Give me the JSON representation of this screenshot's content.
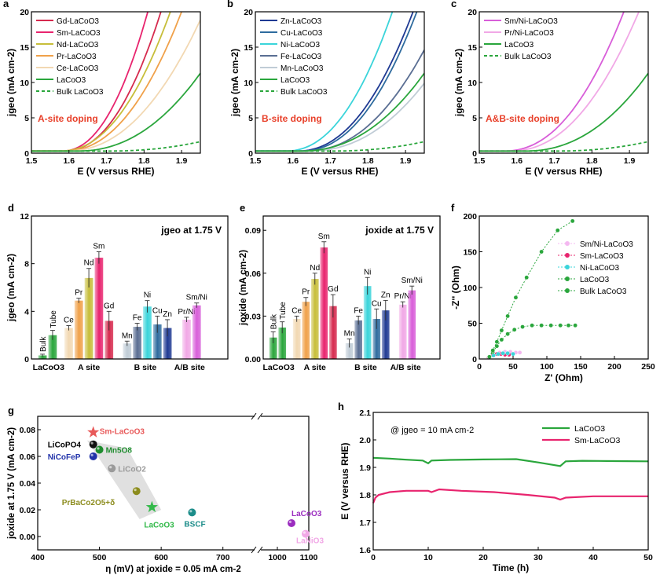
{
  "colors": {
    "Gd": "#d62a4e",
    "Sm": "#e8246e",
    "Nd": "#c7be3a",
    "Pr": "#f0a14a",
    "Ce": "#f2d8b2",
    "LaCoO3": "#2aa63c",
    "Bulk": "#2aa63c",
    "Zn": "#1f3a93",
    "Cu": "#2e6b9e",
    "Ni": "#3ad4da",
    "Fe": "#5a6e93",
    "Mn": "#c0ccd6",
    "SmNi": "#d85ed9",
    "PrNi": "#f1a8e6"
  },
  "panels": [
    {
      "id": "a",
      "letter": "a",
      "type": "line",
      "xlabel": "E (V versus RHE)",
      "ylabel": "jgeo (mA cm-2)",
      "xlim": [
        1.5,
        1.95
      ],
      "ylim": [
        0,
        20
      ],
      "xticks": [
        "1.5",
        "1.6",
        "1.7",
        "1.8",
        "1.9"
      ],
      "yticks": [
        "0",
        "5",
        "10",
        "15",
        "20"
      ],
      "annotation": "A-site doping",
      "series": [
        {
          "name": "Gd-LaCoO3",
          "key": "Gd",
          "onset": 1.585,
          "end": 1.845,
          "dash": false
        },
        {
          "name": "Sm-LaCoO3",
          "key": "Sm",
          "onset": 1.58,
          "end": 1.81,
          "dash": false
        },
        {
          "name": "Nd-LaCoO3",
          "key": "Nd",
          "onset": 1.575,
          "end": 1.87,
          "dash": false
        },
        {
          "name": "Pr-LaCoO3",
          "key": "Pr",
          "onset": 1.585,
          "end": 1.9,
          "dash": false
        },
        {
          "name": "Ce-LaCoO3",
          "key": "Ce",
          "onset": 1.59,
          "end": 1.96,
          "dash": false
        },
        {
          "name": "LaCoO3",
          "key": "LaCoO3",
          "onset": 1.62,
          "end": 2.05,
          "dash": false
        },
        {
          "name": "Bulk LaCoO3",
          "key": "Bulk",
          "onset": 1.7,
          "end": 2.55,
          "dash": true
        }
      ]
    },
    {
      "id": "b",
      "letter": "b",
      "type": "line",
      "xlabel": "E (V versus RHE)",
      "ylabel": "jgeo (mA cm-2)",
      "xlim": [
        1.5,
        1.95
      ],
      "ylim": [
        0,
        20
      ],
      "xticks": [
        "1.5",
        "1.6",
        "1.7",
        "1.8",
        "1.9"
      ],
      "yticks": [
        "0",
        "5",
        "10",
        "15",
        "20"
      ],
      "annotation": "B-site doping",
      "series": [
        {
          "name": "Zn-LaCoO3",
          "key": "Zn",
          "onset": 1.61,
          "end": 1.92,
          "dash": false
        },
        {
          "name": "Cu-LaCoO3",
          "key": "Cu",
          "onset": 1.62,
          "end": 1.93,
          "dash": false
        },
        {
          "name": "Ni-LaCoO3",
          "key": "Ni",
          "onset": 1.58,
          "end": 1.865,
          "dash": false
        },
        {
          "name": "Fe-LaCoO3",
          "key": "Fe",
          "onset": 1.63,
          "end": 2.0,
          "dash": false
        },
        {
          "name": "Mn-LaCoO3",
          "key": "Mn",
          "onset": 1.64,
          "end": 2.07,
          "dash": false
        },
        {
          "name": "LaCoO3",
          "key": "LaCoO3",
          "onset": 1.62,
          "end": 2.05,
          "dash": false
        },
        {
          "name": "Bulk LaCoO3",
          "key": "Bulk",
          "onset": 1.7,
          "end": 2.55,
          "dash": true
        }
      ]
    },
    {
      "id": "c",
      "letter": "c",
      "type": "line",
      "xlabel": "E (V versus RHE)",
      "ylabel": "jgeo (mA cm-2)",
      "xlim": [
        1.5,
        1.95
      ],
      "ylim": [
        0,
        20
      ],
      "xticks": [
        "1.5",
        "1.6",
        "1.7",
        "1.8",
        "1.9"
      ],
      "yticks": [
        "0",
        "5",
        "10",
        "15",
        "20"
      ],
      "annotation": "A&B-site doping",
      "series": [
        {
          "name": "Sm/Ni-LaCoO3",
          "key": "SmNi",
          "onset": 1.565,
          "end": 1.885,
          "dash": false
        },
        {
          "name": "Pr/Ni-LaCoO3",
          "key": "PrNi",
          "onset": 1.58,
          "end": 1.925,
          "dash": false
        },
        {
          "name": "LaCoO3",
          "key": "LaCoO3",
          "onset": 1.62,
          "end": 2.05,
          "dash": false
        },
        {
          "name": "Bulk LaCoO3",
          "key": "Bulk",
          "onset": 1.7,
          "end": 2.55,
          "dash": true
        }
      ]
    },
    {
      "id": "d",
      "letter": "d",
      "type": "bar",
      "ylabel": "jgeo (mA cm-2)",
      "ylim": [
        0,
        12
      ],
      "yticks": [
        "0",
        "4",
        "8",
        "12"
      ],
      "annotation": "jgeo at 1.75 V",
      "groups": [
        "LaCoO3",
        "A site",
        "B site",
        "A/B site"
      ],
      "bars": [
        {
          "label": "Bulk",
          "key": "Bulk",
          "value": 0.3,
          "err": 0.1,
          "group": 0,
          "rot": true
        },
        {
          "label": "Tube",
          "key": "LaCoO3",
          "value": 2.0,
          "err": 0.4,
          "group": 0,
          "rot": true
        },
        {
          "label": "Ce",
          "key": "Ce",
          "value": 2.6,
          "err": 0.2,
          "group": 1
        },
        {
          "label": "Pr",
          "key": "Pr",
          "value": 4.9,
          "err": 0.2,
          "group": 1
        },
        {
          "label": "Nd",
          "key": "Nd",
          "value": 6.8,
          "err": 0.8,
          "group": 1
        },
        {
          "label": "Sm",
          "key": "Sm",
          "value": 8.5,
          "err": 0.5,
          "group": 1
        },
        {
          "label": "Gd",
          "key": "Gd",
          "value": 3.2,
          "err": 0.8,
          "group": 1
        },
        {
          "label": "Mn",
          "key": "Mn",
          "value": 1.3,
          "err": 0.2,
          "group": 2
        },
        {
          "label": "Fe",
          "key": "Fe",
          "value": 2.7,
          "err": 0.3,
          "group": 2
        },
        {
          "label": "Ni",
          "key": "Ni",
          "value": 4.4,
          "err": 0.5,
          "group": 2
        },
        {
          "label": "Cu",
          "key": "Cu",
          "value": 2.9,
          "err": 0.7,
          "group": 2
        },
        {
          "label": "Zn",
          "key": "Zn",
          "value": 2.6,
          "err": 0.7,
          "group": 2
        },
        {
          "label": "Pr/Ni",
          "key": "PrNi",
          "value": 3.3,
          "err": 0.2,
          "group": 3
        },
        {
          "label": "Sm/Ni",
          "key": "SmNi",
          "value": 4.5,
          "err": 0.2,
          "group": 3
        }
      ]
    },
    {
      "id": "e",
      "letter": "e",
      "type": "bar",
      "ylabel": "joxide (mA cm-2)",
      "ylim": [
        0,
        0.1
      ],
      "yticks": [
        "0.00",
        "0.03",
        "0.06",
        "0.09"
      ],
      "annotation": "joxide at 1.75 V",
      "groups": [
        "LaCoO3",
        "A site",
        "B site",
        "A/B site"
      ],
      "bars": [
        {
          "label": "Bulk",
          "key": "Bulk",
          "value": 0.015,
          "err": 0.004,
          "group": 0,
          "rot": true
        },
        {
          "label": "Tube",
          "key": "LaCoO3",
          "value": 0.022,
          "err": 0.004,
          "group": 0,
          "rot": true
        },
        {
          "label": "Ce",
          "key": "Ce",
          "value": 0.028,
          "err": 0.002,
          "group": 1
        },
        {
          "label": "Pr",
          "key": "Pr",
          "value": 0.04,
          "err": 0.003,
          "group": 1
        },
        {
          "label": "Nd",
          "key": "Nd",
          "value": 0.056,
          "err": 0.004,
          "group": 1
        },
        {
          "label": "Sm",
          "key": "Sm",
          "value": 0.078,
          "err": 0.004,
          "group": 1
        },
        {
          "label": "Gd",
          "key": "Gd",
          "value": 0.037,
          "err": 0.008,
          "group": 1
        },
        {
          "label": "Mn",
          "key": "Mn",
          "value": 0.011,
          "err": 0.003,
          "group": 2
        },
        {
          "label": "Fe",
          "key": "Fe",
          "value": 0.027,
          "err": 0.003,
          "group": 2
        },
        {
          "label": "Ni",
          "key": "Ni",
          "value": 0.051,
          "err": 0.006,
          "group": 2
        },
        {
          "label": "Cu",
          "key": "Cu",
          "value": 0.028,
          "err": 0.007,
          "group": 2
        },
        {
          "label": "Zn",
          "key": "Zn",
          "value": 0.034,
          "err": 0.007,
          "group": 2
        },
        {
          "label": "Pr/Ni",
          "key": "PrNi",
          "value": 0.038,
          "err": 0.002,
          "group": 3
        },
        {
          "label": "Sm/Ni",
          "key": "SmNi",
          "value": 0.048,
          "err": 0.003,
          "group": 3
        }
      ]
    },
    {
      "id": "f",
      "letter": "f",
      "type": "scatter",
      "xlabel": "Z' (Ohm)",
      "ylabel": "-Z'' (Ohm)",
      "xlim": [
        0,
        250
      ],
      "ylim": [
        0,
        200
      ],
      "xticks": [
        "0",
        "50",
        "100",
        "150",
        "200",
        "250"
      ],
      "yticks": [
        "0",
        "50",
        "100",
        "150",
        "200"
      ],
      "series": [
        {
          "name": "Sm/Ni-LaCoO3",
          "key": "SmNi",
          "fill": "#f4b8f0",
          "x": [
            15,
            22,
            30,
            38,
            46,
            54,
            60
          ],
          "y": [
            2,
            6,
            9,
            10,
            10,
            9,
            9
          ]
        },
        {
          "name": "Sm-LaCoO3",
          "key": "Sm",
          "fill": "#e8246e",
          "x": [
            14,
            20,
            26,
            32,
            38,
            44
          ],
          "y": [
            2,
            5,
            7,
            7,
            6,
            6
          ]
        },
        {
          "name": "Ni-LaCoO3",
          "key": "Ni",
          "fill": "#3ad4da",
          "x": [
            15,
            21,
            28,
            35,
            42,
            50
          ],
          "y": [
            2,
            5,
            7,
            8,
            8,
            7
          ]
        },
        {
          "name": "LaCoO3",
          "key": "LaCoO3",
          "fill": "#2aa63c",
          "x": [
            15,
            20,
            26,
            33,
            42,
            52,
            64,
            78,
            92,
            106,
            120,
            132,
            142
          ],
          "y": [
            3,
            10,
            18,
            27,
            35,
            41,
            45,
            47,
            47,
            47,
            47,
            47,
            47
          ]
        },
        {
          "name": "Bulk LaCoO3",
          "key": "Bulk",
          "fill": "#2aa63c",
          "x": [
            15,
            20,
            26,
            33,
            42,
            54,
            70,
            92,
            116,
            138
          ],
          "y": [
            3,
            12,
            24,
            40,
            60,
            86,
            114,
            150,
            180,
            193
          ]
        }
      ]
    },
    {
      "id": "g",
      "letter": "g",
      "type": "scatter",
      "xlabel": "η (mV) at joxide = 0.05 mA cm-2",
      "ylabel": "joxide at 1.75 V (mA cm-2)",
      "ylim": [
        -0.01,
        0.09
      ],
      "yticks": [
        "0.00",
        "0.02",
        "0.04",
        "0.06",
        "0.08"
      ],
      "xticks_left": [
        "400",
        "500",
        "600",
        "700"
      ],
      "xticks_right": [
        "1000",
        "1100"
      ],
      "points": [
        {
          "label": "Sm-LaCoO3",
          "x": 490,
          "y": 0.078,
          "color": "#e85a5a",
          "marker": "star"
        },
        {
          "label": "LaCoO3",
          "x": 585,
          "y": 0.022,
          "color": "#33b94a",
          "marker": "star"
        },
        {
          "label": "LiCoPO4",
          "x": 490,
          "y": 0.069,
          "color": "#111111",
          "marker": "sphere"
        },
        {
          "label": "Mn5O8",
          "x": 500,
          "y": 0.065,
          "color": "#1e8c2e",
          "marker": "sphere"
        },
        {
          "label": "NiCoFeP",
          "x": 490,
          "y": 0.06,
          "color": "#2233aa",
          "marker": "sphere"
        },
        {
          "label": "LiCoO2",
          "x": 520,
          "y": 0.051,
          "color": "#9a9a9a",
          "marker": "sphere"
        },
        {
          "label": "PrBaCo2O5+δ",
          "x": 560,
          "y": 0.034,
          "color": "#8c8c1e",
          "marker": "sphere"
        },
        {
          "label": "BSCF",
          "x": 650,
          "y": 0.018,
          "color": "#1d8d8a",
          "marker": "sphere"
        },
        {
          "label": "LaCoO3",
          "x": 1045,
          "y": 0.01,
          "color": "#9b2dbf",
          "marker": "sphere"
        },
        {
          "label": "LaNiO3",
          "x": 1090,
          "y": 0.002,
          "color": "#f1a8e6",
          "marker": "sphere"
        }
      ]
    },
    {
      "id": "h",
      "letter": "h",
      "type": "line",
      "xlabel": "Time (h)",
      "ylabel": "E (V versus RHE)",
      "xlim": [
        0,
        50
      ],
      "ylim": [
        1.6,
        2.1
      ],
      "xticks": [
        "0",
        "10",
        "20",
        "30",
        "40",
        "50"
      ],
      "yticks": [
        "1.6",
        "1.7",
        "1.8",
        "1.9",
        "2.0",
        "2.1"
      ],
      "annotation": "@ jgeo = 10 mA cm-2",
      "series": [
        {
          "name": "LaCoO3",
          "key": "LaCoO3",
          "x": [
            0,
            3,
            6,
            9,
            10,
            10.6,
            14,
            20,
            26,
            30,
            34,
            35,
            38,
            44,
            50
          ],
          "y": [
            1.935,
            1.932,
            1.928,
            1.925,
            1.915,
            1.925,
            1.927,
            1.929,
            1.93,
            1.918,
            1.905,
            1.922,
            1.924,
            1.923,
            1.922
          ]
        },
        {
          "name": "Sm-LaCoO3",
          "key": "Sm",
          "x": [
            0,
            0.4,
            1,
            3,
            6,
            10,
            10.6,
            12,
            16,
            22,
            28,
            33,
            34,
            35,
            40,
            45,
            50
          ],
          "y": [
            1.77,
            1.79,
            1.8,
            1.81,
            1.815,
            1.815,
            1.81,
            1.82,
            1.815,
            1.81,
            1.8,
            1.79,
            1.783,
            1.79,
            1.795,
            1.795,
            1.795
          ]
        }
      ]
    }
  ]
}
